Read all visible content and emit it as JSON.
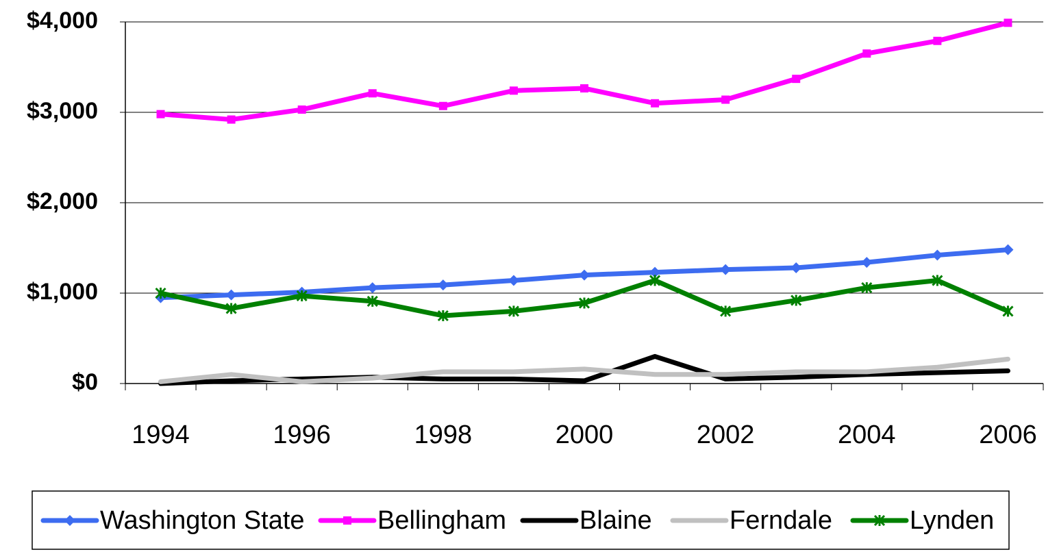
{
  "chart_data": {
    "type": "line",
    "categories": [
      "1994",
      null,
      "1996",
      null,
      "1998",
      null,
      "2000",
      null,
      "2002",
      null,
      "2004",
      null,
      "2006"
    ],
    "series": [
      {
        "name": "Washington State",
        "color": "#3d6cf0",
        "marker": "diamond",
        "values": [
          950,
          980,
          1010,
          1060,
          1090,
          1140,
          1200,
          1230,
          1260,
          1280,
          1340,
          1420,
          1480
        ]
      },
      {
        "name": "Bellingham",
        "color": "#ff00ff",
        "marker": "square",
        "values": [
          2980,
          2920,
          3030,
          3210,
          3070,
          3240,
          3265,
          3100,
          3140,
          3370,
          3650,
          3790,
          3990
        ]
      },
      {
        "name": "Blaine",
        "color": "#000000",
        "marker": "none",
        "values": [
          0,
          30,
          50,
          70,
          50,
          50,
          30,
          300,
          50,
          70,
          100,
          120,
          140
        ]
      },
      {
        "name": "Ferndale",
        "color": "#c0c0c0",
        "marker": "none",
        "values": [
          20,
          100,
          20,
          60,
          130,
          130,
          160,
          100,
          100,
          130,
          130,
          180,
          270
        ]
      },
      {
        "name": "Lynden",
        "color": "#008000",
        "marker": "asterisk",
        "values": [
          1000,
          830,
          970,
          910,
          750,
          800,
          890,
          1140,
          800,
          920,
          1060,
          1140,
          800
        ]
      }
    ],
    "ylim": [
      0,
      4000
    ],
    "yticks": [
      {
        "value": 0,
        "label": "$0"
      },
      {
        "value": 1000,
        "label": "$1,000"
      },
      {
        "value": 2000,
        "label": "$2,000"
      },
      {
        "value": 3000,
        "label": "$3,000"
      },
      {
        "value": 4000,
        "label": "$4,000"
      }
    ],
    "grid": true,
    "legend": "bottom"
  }
}
